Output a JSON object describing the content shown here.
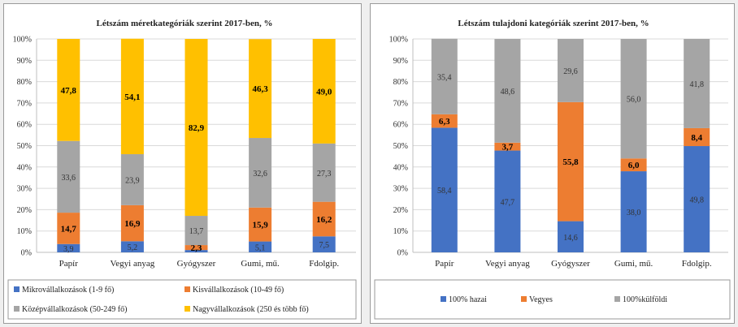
{
  "colors": {
    "blue": "#4472c4",
    "orange": "#ed7d31",
    "gray": "#a5a5a5",
    "yellow": "#ffc000",
    "grid": "#d9d9d9"
  },
  "chart_data": [
    {
      "type": "bar",
      "stacked": true,
      "percent": true,
      "title": "Létszám méretkategóriák szerint 2017-ben, %",
      "categories": [
        "Papír",
        "Vegyi anyag",
        "Gyógyszer",
        "Gumi, mű.",
        "Fdolgip."
      ],
      "y_ticks": [
        "0%",
        "10%",
        "20%",
        "30%",
        "40%",
        "50%",
        "60%",
        "70%",
        "80%",
        "90%",
        "100%"
      ],
      "ylim": [
        0,
        100
      ],
      "grid": true,
      "legend_position": "bottom",
      "series": [
        {
          "name": "Mikrovállalkozások (1-9 fő)",
          "color": "#4472c4",
          "values": [
            3.9,
            5.2,
            1.1,
            5.1,
            7.5
          ],
          "labels": [
            "3,9",
            "5,2",
            "",
            "5,1",
            "7,5"
          ],
          "label_style": "plain"
        },
        {
          "name": "Kisvállalkozások (10-49 fő)",
          "color": "#ed7d31",
          "values": [
            14.7,
            16.9,
            2.3,
            15.9,
            16.2
          ],
          "labels": [
            "14,7",
            "16,9",
            "2,3",
            "15,9",
            "16,2"
          ],
          "label_style": "bold"
        },
        {
          "name": "Középvállalkozások (50-249 fő)",
          "color": "#a5a5a5",
          "values": [
            33.6,
            23.9,
            13.7,
            32.6,
            27.3
          ],
          "labels": [
            "33,6",
            "23,9",
            "13,7",
            "32,6",
            "27,3"
          ],
          "label_style": "plain"
        },
        {
          "name": "Nagyvállalkozások (250 és több fő)",
          "color": "#ffc000",
          "values": [
            47.8,
            54.1,
            82.9,
            46.3,
            49.0
          ],
          "labels": [
            "47,8",
            "54,1",
            "82,9",
            "46,3",
            "49,0"
          ],
          "label_style": "bold"
        }
      ]
    },
    {
      "type": "bar",
      "stacked": true,
      "percent": true,
      "title": "Létszám tulajdoni kategóriák szerint 2017-ben, %",
      "categories": [
        "Papír",
        "Vegyi anyag",
        "Gyógyszer",
        "Gumi, mű.",
        "Fdolgip."
      ],
      "y_ticks": [
        "0%",
        "10%",
        "20%",
        "30%",
        "40%",
        "50%",
        "60%",
        "70%",
        "80%",
        "90%",
        "100%"
      ],
      "ylim": [
        0,
        100
      ],
      "grid": true,
      "legend_position": "bottom",
      "series": [
        {
          "name": "100% hazai",
          "color": "#4472c4",
          "values": [
            58.4,
            47.7,
            14.6,
            38.0,
            49.8
          ],
          "labels": [
            "58,4",
            "47,7",
            "14,6",
            "38,0",
            "49,8"
          ],
          "label_style": "plain"
        },
        {
          "name": "Vegyes",
          "color": "#ed7d31",
          "values": [
            6.3,
            3.7,
            55.8,
            6.0,
            8.4
          ],
          "labels": [
            "6,3",
            "3,7",
            "55,8",
            "6,0",
            "8,4"
          ],
          "label_style": "bold"
        },
        {
          "name": "100%külföldi",
          "color": "#a5a5a5",
          "values": [
            35.4,
            48.6,
            29.6,
            56.0,
            41.8
          ],
          "labels": [
            "35,4",
            "48,6",
            "29,6",
            "56,0",
            "41,8"
          ],
          "label_style": "plain"
        }
      ]
    }
  ]
}
